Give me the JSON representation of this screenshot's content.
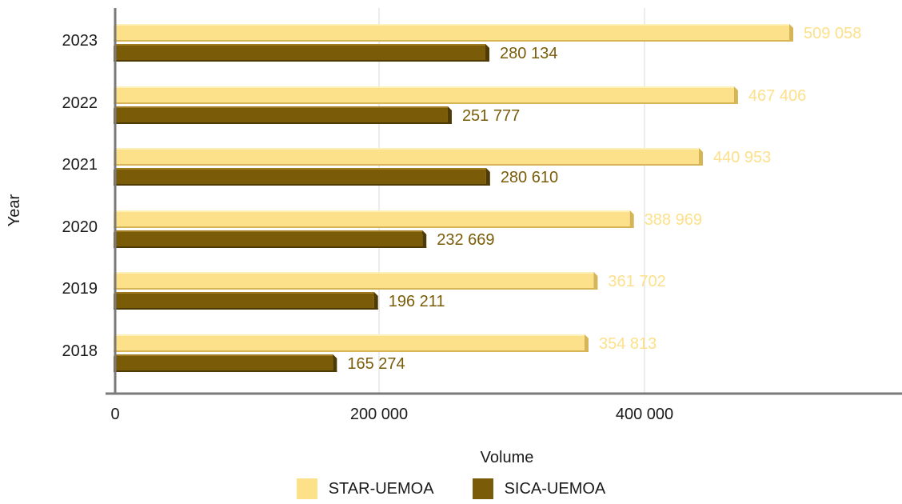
{
  "chart_data": {
    "type": "bar",
    "orientation": "horizontal",
    "categories": [
      "2018",
      "2019",
      "2020",
      "2021",
      "2022",
      "2023"
    ],
    "series": [
      {
        "name": "STAR-UEMOA",
        "color": "#FCE08A",
        "values": [
          354813,
          361702,
          388969,
          440953,
          467406,
          509058
        ],
        "labels": [
          "354 813",
          "361 702",
          "388 969",
          "440 953",
          "467 406",
          "509 058"
        ]
      },
      {
        "name": "SICA-UEMOA",
        "color": "#7A5C08",
        "values": [
          165274,
          196211,
          232669,
          280610,
          251777,
          280134
        ],
        "labels": [
          "165 274",
          "196 211",
          "232 669",
          "280 610",
          "251 777",
          "280 134"
        ]
      }
    ],
    "xlabel": "Volume",
    "ylabel": "Year",
    "xlim": [
      0,
      600000
    ],
    "xticks": [
      0,
      200000,
      400000
    ],
    "xtick_labels": [
      "0",
      "200 000",
      "400 000"
    ],
    "grid": "vertical",
    "legend": "bottom"
  }
}
